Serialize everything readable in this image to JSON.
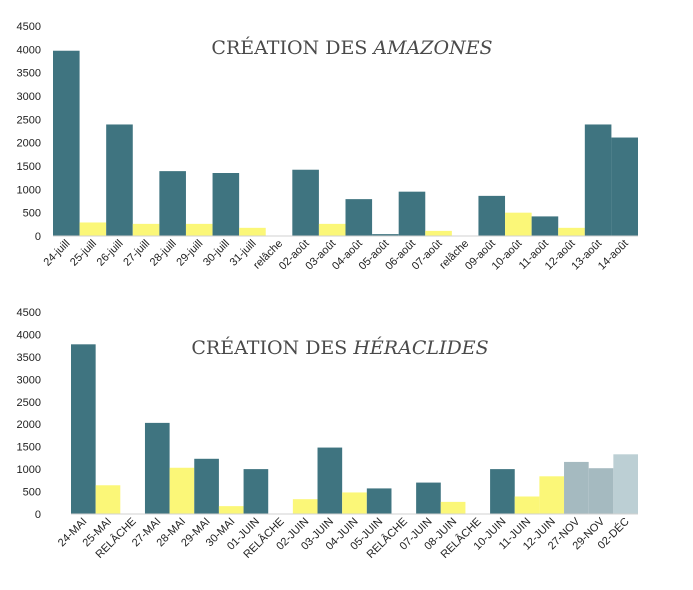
{
  "chart_data": [
    {
      "type": "bar",
      "title_prefix": "CRÉATION DES ",
      "title_emphasis": "AMAZONES",
      "ylim": [
        0,
        4500
      ],
      "yticks": [
        0,
        500,
        1000,
        1500,
        2000,
        2500,
        3000,
        3500,
        4000,
        4500
      ],
      "grid": false,
      "categories": [
        "24-juill",
        "25-juill",
        "26-juill",
        "27-juill",
        "28-juill",
        "29-juill",
        "30-juill",
        "31-juill",
        "relâche",
        "02-août",
        "03-août",
        "04-août",
        "05-août",
        "06-août",
        "07-août",
        "relâche",
        "09-août",
        "10-août",
        "11-août",
        "12-août",
        "13-août",
        "14-août"
      ],
      "values": [
        3970,
        290,
        2390,
        260,
        1390,
        260,
        1350,
        175,
        0,
        1420,
        260,
        790,
        40,
        950,
        110,
        0,
        860,
        500,
        420,
        175,
        2390,
        2110
      ],
      "colors": [
        "#3f7480",
        "#fbf778",
        "#3f7480",
        "#fbf778",
        "#3f7480",
        "#fbf778",
        "#3f7480",
        "#fbf778",
        "#ffffff",
        "#3f7480",
        "#fbf778",
        "#3f7480",
        "#3f7480",
        "#3f7480",
        "#fbf778",
        "#ffffff",
        "#3f7480",
        "#fbf778",
        "#3f7480",
        "#fbf778",
        "#3f7480",
        "#3f7480"
      ]
    },
    {
      "type": "bar",
      "title_prefix": "CRÉATION DES ",
      "title_emphasis": "HÉRACLIDES",
      "ylim": [
        0,
        4500
      ],
      "yticks": [
        0,
        500,
        1000,
        1500,
        2000,
        2500,
        3000,
        3500,
        4000,
        4500
      ],
      "grid": false,
      "categories": [
        "24-MAI",
        "25-MAI",
        "RELÂCHE",
        "27-MAI",
        "28-MAI",
        "29-MAI",
        "30-MAI",
        "01-JUIN",
        "RELÂCHE",
        "02-JUIN",
        "03-JUIN",
        "04-JUIN",
        "05-JUIN",
        "RELÂCHE",
        "07-JUIN",
        "08-JUIN",
        "RELÂCHE",
        "10-JUIN",
        "11-JUIN",
        "12-JUIN",
        "27-NOV",
        "29-NOV",
        "02-DÉC"
      ],
      "values": [
        3780,
        640,
        0,
        2030,
        1030,
        1230,
        175,
        1000,
        0,
        330,
        1480,
        480,
        570,
        0,
        700,
        270,
        0,
        1000,
        390,
        840,
        1160,
        1020,
        1330
      ],
      "colors": [
        "#3f7480",
        "#fbf778",
        "#ffffff",
        "#3f7480",
        "#fbf778",
        "#3f7480",
        "#fbf778",
        "#3f7480",
        "#ffffff",
        "#fbf778",
        "#3f7480",
        "#fbf778",
        "#3f7480",
        "#ffffff",
        "#3f7480",
        "#fbf778",
        "#ffffff",
        "#3f7480",
        "#fbf778",
        "#fbf778",
        "#a5bac0",
        "#a5bac0",
        "#bccfd4"
      ]
    }
  ]
}
